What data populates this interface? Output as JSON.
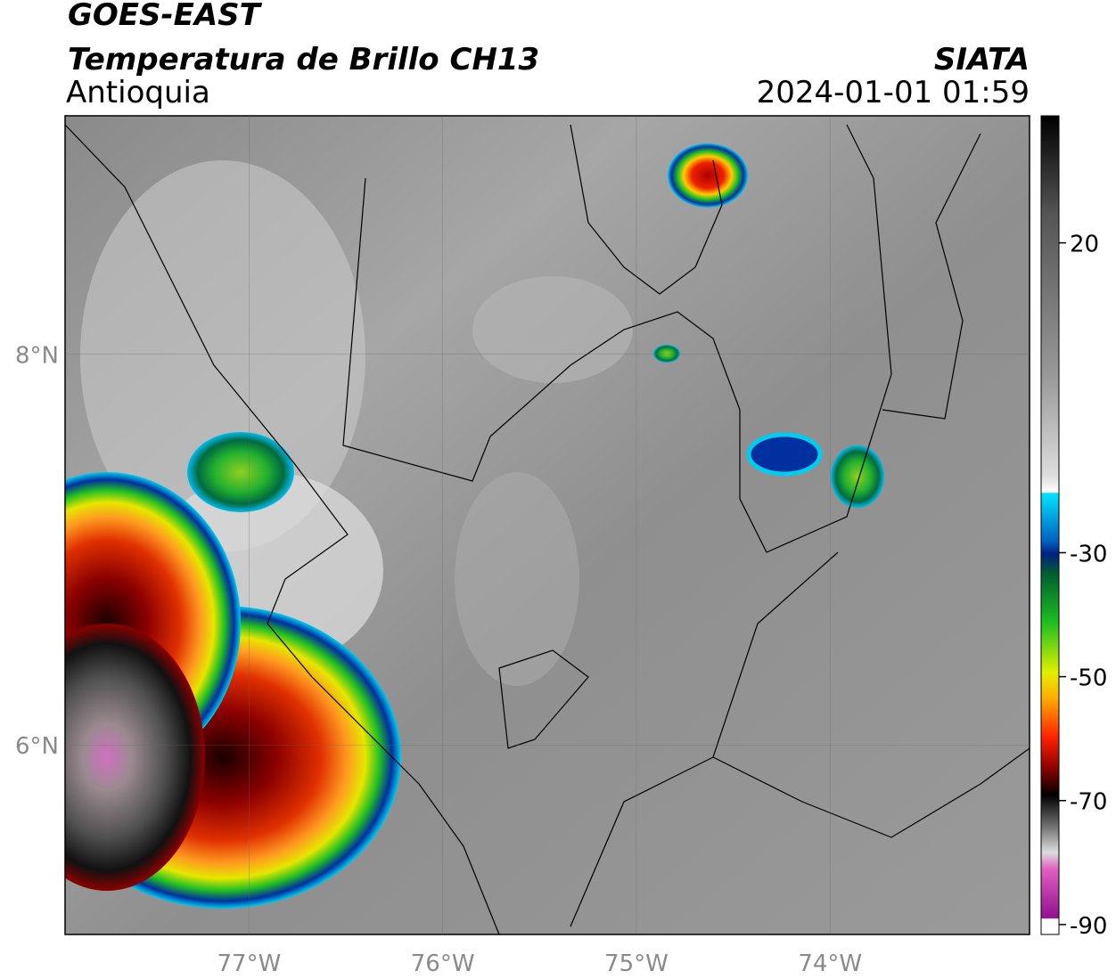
{
  "header": {
    "title": "GOES-EAST",
    "subtitle": "Temperatura de Brillo CH13",
    "region": "Antioquia",
    "source": "SIATA",
    "datetime": "2024-01-01 01:59"
  },
  "map": {
    "xlim": [
      -77.95,
      -72.97
    ],
    "ylim": [
      5.03,
      9.22
    ],
    "xticks": [
      {
        "value": -77,
        "label": "77°W"
      },
      {
        "value": -76,
        "label": "76°W"
      },
      {
        "value": -75,
        "label": "75°W"
      },
      {
        "value": -74,
        "label": "74°W"
      }
    ],
    "yticks": [
      {
        "value": 6,
        "label": "6°N"
      },
      {
        "value": 8,
        "label": "8°N"
      }
    ],
    "grid": true
  },
  "colorbar": {
    "lim": [
      -91.6,
      40.5
    ],
    "ticks": [
      20,
      -30,
      -50,
      -70,
      -90
    ]
  }
}
